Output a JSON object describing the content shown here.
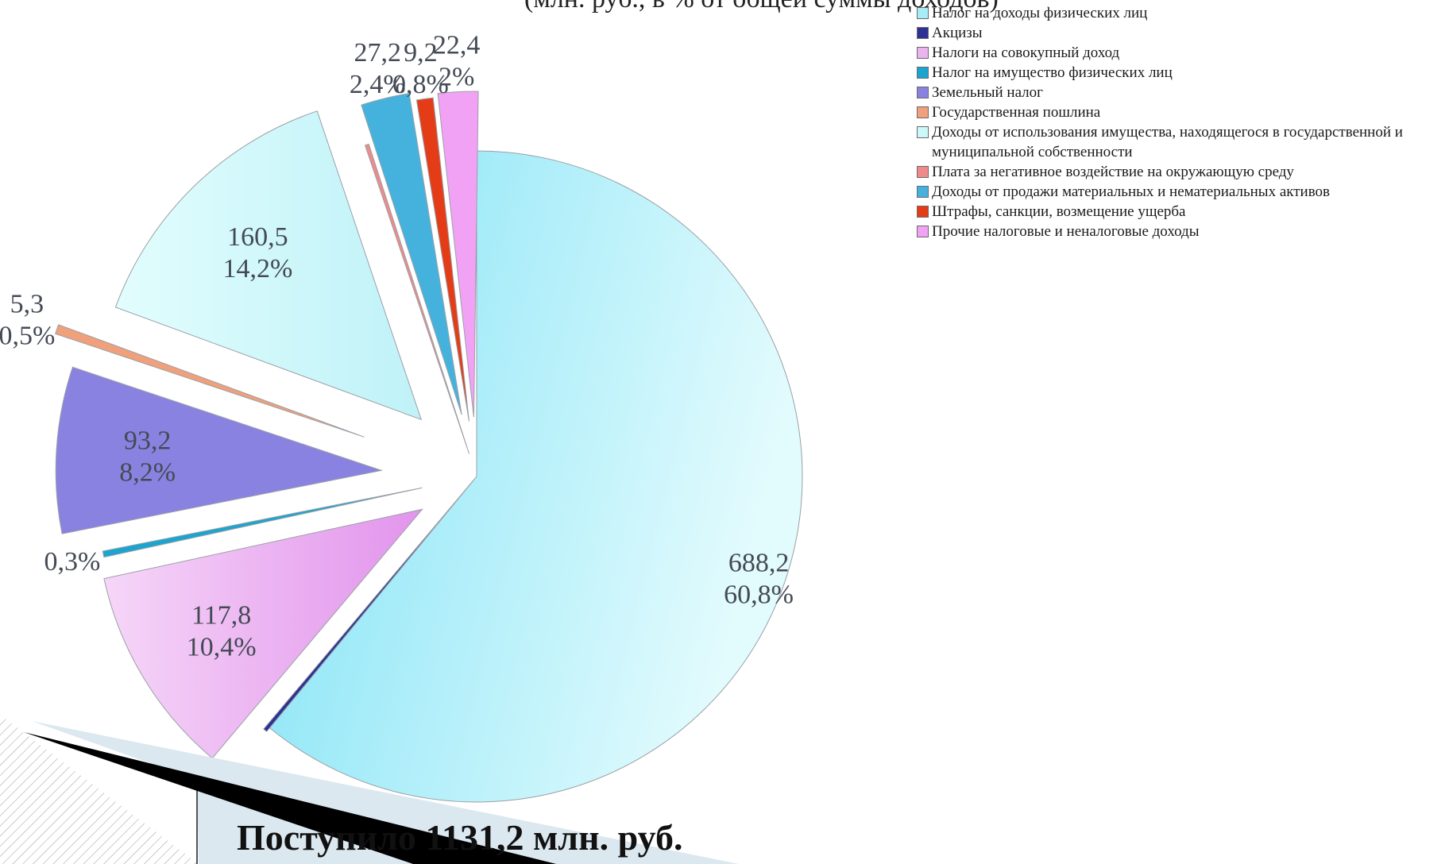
{
  "header_fragment": "(млн. руб., в % от общей суммы доходов)",
  "footer": "Поступило 1131,2 млн. руб.",
  "chart_data": {
    "type": "pie",
    "exploded": true,
    "legend_position": "right",
    "total": 1131.2,
    "series": [
      {
        "name": "Налог на доходы физических лиц",
        "value": 688.2,
        "percent": "60,8%",
        "value_label": "688,2",
        "color": "#a8ecf8"
      },
      {
        "name": "Акцизы",
        "value": 0.6,
        "percent": "",
        "value_label": "",
        "color": "#2e3192"
      },
      {
        "name": "Налоги на совокупный доход",
        "value": 117.8,
        "percent": "10,4%",
        "value_label": "117,8",
        "color": "#eab4ef"
      },
      {
        "name": "Налог на имущество физических лиц",
        "value": 3.4,
        "percent": "0,3%",
        "value_label": "",
        "color": "#1ba4cf"
      },
      {
        "name": "Земельный налог",
        "value": 93.2,
        "percent": "8,2%",
        "value_label": "93,2",
        "color": "#8a82e0"
      },
      {
        "name": "Государственная пошлина",
        "value": 5.3,
        "percent": "0,5%",
        "value_label": "5,3",
        "color": "#f0a07a"
      },
      {
        "name": "Доходы от использования имущества, находящегося в государственной и муниципальной собственности",
        "value": 160.5,
        "percent": "14,2%",
        "value_label": "160,5",
        "color": "#cdf8fa"
      },
      {
        "name": "Плата за негативное воздействие на окружающую среду",
        "value": 1.2,
        "percent": "",
        "value_label": "",
        "color": "#f08a8a"
      },
      {
        "name": "Доходы от продажи материальных и нематериальных активов",
        "value": 27.2,
        "percent": "2,4%",
        "value_label": "27,2",
        "color": "#45b2de"
      },
      {
        "name": "Штрафы, санкции, возмещение ущерба",
        "value": 9.2,
        "percent": "0,8%",
        "value_label": "9,2",
        "color": "#e43c16"
      },
      {
        "name": "Прочие налоговые и неналоговые доходы",
        "value": 22.4,
        "percent": "2%",
        "value_label": "22,4",
        "color": "#f2a2f4"
      }
    ]
  }
}
